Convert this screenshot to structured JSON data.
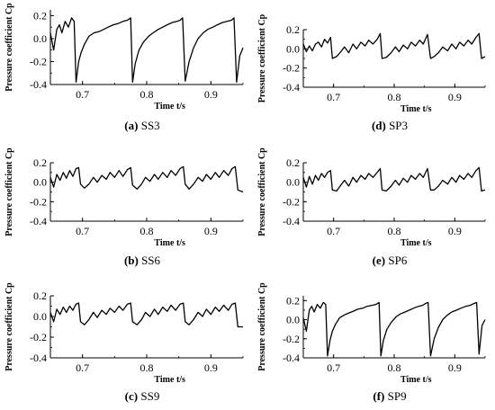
{
  "chart_data": [
    {
      "type": "line",
      "panel_label": "(a)",
      "caption": "SS3",
      "ylabel": "Pressure coefficient Cp",
      "xlabel": "Time t/s",
      "xlim": [
        0.65,
        0.95
      ],
      "ylim": [
        -0.4,
        0.25
      ],
      "xticks": [
        "0.7",
        "0.8",
        "0.9"
      ],
      "yticks": [
        "-0.4",
        "-0.2",
        "0.0",
        "0.2"
      ],
      "series": [
        {
          "x": [
            0.65,
            0.655,
            0.66,
            0.664,
            0.668,
            0.673,
            0.678,
            0.683,
            0.687,
            0.69,
            0.694,
            0.698,
            0.703,
            0.71,
            0.718,
            0.725,
            0.733,
            0.74,
            0.748,
            0.755,
            0.763,
            0.77,
            0.775,
            0.778,
            0.782,
            0.788,
            0.795,
            0.803,
            0.81,
            0.818,
            0.825,
            0.832,
            0.84,
            0.847,
            0.852,
            0.856,
            0.86,
            0.866,
            0.873,
            0.88,
            0.888,
            0.895,
            0.903,
            0.91,
            0.918,
            0.925,
            0.932,
            0.936,
            0.94,
            0.945,
            0.95
          ],
          "y": [
            0.05,
            -0.1,
            0.08,
            0.12,
            0.05,
            0.15,
            0.1,
            0.18,
            0.15,
            -0.38,
            -0.2,
            -0.12,
            -0.05,
            0.02,
            0.05,
            0.06,
            0.08,
            0.1,
            0.12,
            0.13,
            0.15,
            0.16,
            0.18,
            -0.38,
            -0.22,
            -0.1,
            -0.03,
            0.02,
            0.05,
            0.08,
            0.1,
            0.12,
            0.14,
            0.15,
            0.16,
            0.18,
            -0.37,
            -0.2,
            -0.08,
            0.0,
            0.05,
            0.08,
            0.1,
            0.12,
            0.14,
            0.15,
            0.16,
            0.18,
            -0.38,
            -0.15,
            -0.08
          ]
        }
      ]
    },
    {
      "type": "line",
      "panel_label": "(d)",
      "caption": "SP3",
      "ylabel": "Pressure coefficient Cp",
      "xlabel": "Time t/s",
      "xlim": [
        0.65,
        0.95
      ],
      "ylim": [
        -0.4,
        0.2
      ],
      "xticks": [
        "0.7",
        "0.8",
        "0.9"
      ],
      "yticks": [
        "-0.4",
        "-0.2",
        "0.0",
        "0.2"
      ],
      "series": [
        {
          "x": [
            0.65,
            0.655,
            0.66,
            0.665,
            0.67,
            0.675,
            0.68,
            0.685,
            0.69,
            0.695,
            0.698,
            0.705,
            0.712,
            0.718,
            0.725,
            0.732,
            0.738,
            0.745,
            0.752,
            0.758,
            0.765,
            0.772,
            0.777,
            0.78,
            0.787,
            0.795,
            0.802,
            0.808,
            0.815,
            0.822,
            0.828,
            0.835,
            0.842,
            0.848,
            0.855,
            0.86,
            0.866,
            0.873,
            0.88,
            0.888,
            0.895,
            0.902,
            0.908,
            0.915,
            0.922,
            0.928,
            0.935,
            0.94,
            0.944,
            0.95
          ],
          "y": [
            0.05,
            -0.03,
            0.03,
            -0.02,
            0.05,
            0.07,
            0.02,
            0.1,
            0.06,
            0.12,
            -0.1,
            -0.08,
            -0.03,
            0.02,
            -0.04,
            0.05,
            0.0,
            0.07,
            0.03,
            0.09,
            0.05,
            0.1,
            0.16,
            -0.1,
            -0.09,
            -0.04,
            0.02,
            -0.03,
            0.04,
            0.0,
            0.07,
            0.03,
            0.09,
            0.05,
            0.15,
            -0.1,
            -0.08,
            -0.04,
            0.02,
            -0.02,
            0.05,
            0.0,
            0.07,
            0.03,
            0.09,
            0.05,
            0.12,
            0.16,
            -0.1,
            -0.08
          ]
        }
      ]
    },
    {
      "type": "line",
      "panel_label": "(b)",
      "caption": "SS6",
      "ylabel": "Pressure coefficient Cp",
      "xlabel": "Time t/s",
      "xlim": [
        0.65,
        0.95
      ],
      "ylim": [
        -0.4,
        0.2
      ],
      "xticks": [
        "0.7",
        "0.8",
        "0.9"
      ],
      "yticks": [
        "-0.4",
        "-0.2",
        "0.0",
        "0.2"
      ],
      "series": [
        {
          "x": [
            0.65,
            0.655,
            0.66,
            0.665,
            0.67,
            0.675,
            0.68,
            0.685,
            0.69,
            0.694,
            0.697,
            0.703,
            0.71,
            0.717,
            0.723,
            0.73,
            0.737,
            0.743,
            0.75,
            0.757,
            0.763,
            0.77,
            0.775,
            0.778,
            0.785,
            0.792,
            0.798,
            0.805,
            0.812,
            0.818,
            0.825,
            0.832,
            0.838,
            0.845,
            0.852,
            0.857,
            0.86,
            0.866,
            0.873,
            0.88,
            0.887,
            0.893,
            0.9,
            0.907,
            0.913,
            0.92,
            0.927,
            0.933,
            0.938,
            0.942,
            0.95
          ],
          "y": [
            0.05,
            -0.05,
            0.08,
            0.02,
            0.1,
            0.04,
            0.12,
            0.06,
            0.14,
            0.15,
            -0.02,
            -0.06,
            -0.02,
            0.05,
            0.0,
            0.07,
            0.03,
            0.1,
            0.05,
            0.12,
            0.06,
            0.13,
            0.15,
            -0.03,
            -0.07,
            -0.02,
            0.05,
            0.01,
            0.08,
            0.03,
            0.1,
            0.05,
            0.12,
            0.07,
            0.14,
            0.16,
            -0.02,
            -0.07,
            -0.02,
            0.05,
            0.01,
            0.08,
            0.03,
            0.1,
            0.05,
            0.12,
            0.07,
            0.14,
            0.16,
            -0.08,
            -0.1
          ]
        }
      ]
    },
    {
      "type": "line",
      "panel_label": "(e)",
      "caption": "SP6",
      "ylabel": "Pressure coefficient Cp",
      "xlabel": "Time t/s",
      "xlim": [
        0.65,
        0.95
      ],
      "ylim": [
        -0.4,
        0.2
      ],
      "xticks": [
        "0.7",
        "0.8",
        "0.9"
      ],
      "yticks": [
        "-0.4",
        "-0.2",
        "0.0",
        "0.2"
      ],
      "series": [
        {
          "x": [
            0.65,
            0.655,
            0.66,
            0.665,
            0.67,
            0.675,
            0.68,
            0.685,
            0.69,
            0.695,
            0.698,
            0.705,
            0.712,
            0.718,
            0.725,
            0.732,
            0.738,
            0.745,
            0.752,
            0.758,
            0.765,
            0.772,
            0.777,
            0.78,
            0.787,
            0.795,
            0.802,
            0.808,
            0.815,
            0.822,
            0.828,
            0.835,
            0.842,
            0.848,
            0.855,
            0.86,
            0.866,
            0.873,
            0.88,
            0.888,
            0.895,
            0.902,
            0.908,
            0.915,
            0.922,
            0.928,
            0.935,
            0.94,
            0.944,
            0.95
          ],
          "y": [
            0.05,
            -0.05,
            0.06,
            -0.02,
            0.07,
            0.02,
            0.09,
            0.05,
            0.1,
            0.12,
            -0.08,
            -0.09,
            -0.03,
            0.02,
            -0.04,
            0.05,
            0.0,
            0.07,
            0.03,
            0.09,
            0.05,
            0.1,
            0.14,
            -0.08,
            -0.09,
            -0.04,
            0.02,
            -0.03,
            0.04,
            0.0,
            0.07,
            0.03,
            0.09,
            0.05,
            0.14,
            -0.08,
            -0.08,
            -0.04,
            0.02,
            -0.02,
            0.05,
            0.0,
            0.07,
            0.03,
            0.09,
            0.05,
            0.12,
            0.15,
            -0.09,
            -0.08
          ]
        }
      ]
    },
    {
      "type": "line",
      "panel_label": "(c)",
      "caption": "SS9",
      "ylabel": "Pressure coefficient Cp",
      "xlabel": "Time t/s",
      "xlim": [
        0.65,
        0.95
      ],
      "ylim": [
        -0.4,
        0.2
      ],
      "xticks": [
        "0.7",
        "0.8",
        "0.9"
      ],
      "yticks": [
        "-0.4",
        "-0.2",
        "0.0",
        "0.2"
      ],
      "series": [
        {
          "x": [
            0.65,
            0.655,
            0.66,
            0.665,
            0.67,
            0.675,
            0.68,
            0.685,
            0.69,
            0.694,
            0.697,
            0.703,
            0.71,
            0.717,
            0.723,
            0.73,
            0.737,
            0.743,
            0.75,
            0.757,
            0.763,
            0.77,
            0.775,
            0.778,
            0.785,
            0.792,
            0.798,
            0.805,
            0.812,
            0.818,
            0.825,
            0.832,
            0.838,
            0.845,
            0.852,
            0.857,
            0.86,
            0.866,
            0.873,
            0.88,
            0.887,
            0.893,
            0.9,
            0.907,
            0.913,
            0.92,
            0.927,
            0.933,
            0.938,
            0.942,
            0.95
          ],
          "y": [
            0.04,
            -0.05,
            0.07,
            0.02,
            0.09,
            0.04,
            0.1,
            0.06,
            0.12,
            0.13,
            -0.05,
            -0.08,
            -0.03,
            0.04,
            -0.01,
            0.06,
            0.02,
            0.08,
            0.04,
            0.1,
            0.06,
            0.12,
            0.13,
            -0.05,
            -0.08,
            -0.03,
            0.04,
            0.0,
            0.07,
            0.02,
            0.09,
            0.05,
            0.11,
            0.06,
            0.12,
            0.13,
            -0.05,
            -0.08,
            -0.03,
            0.04,
            0.0,
            0.07,
            0.02,
            0.09,
            0.05,
            0.11,
            0.06,
            0.12,
            0.13,
            -0.1,
            -0.1
          ]
        }
      ]
    },
    {
      "type": "line",
      "panel_label": "(f)",
      "caption": "SP9",
      "ylabel": "Pressure coefficient Cp",
      "xlabel": "Time t/s",
      "xlim": [
        0.65,
        0.95
      ],
      "ylim": [
        -0.4,
        0.25
      ],
      "xticks": [
        "0.7",
        "0.8",
        "0.9"
      ],
      "yticks": [
        "-0.4",
        "-0.2",
        "0.0",
        "0.2"
      ],
      "series": [
        {
          "x": [
            0.65,
            0.655,
            0.66,
            0.664,
            0.668,
            0.673,
            0.678,
            0.683,
            0.687,
            0.69,
            0.694,
            0.698,
            0.703,
            0.71,
            0.718,
            0.725,
            0.733,
            0.74,
            0.748,
            0.755,
            0.763,
            0.77,
            0.775,
            0.778,
            0.782,
            0.788,
            0.795,
            0.803,
            0.81,
            0.818,
            0.825,
            0.832,
            0.84,
            0.847,
            0.852,
            0.856,
            0.86,
            0.866,
            0.873,
            0.88,
            0.888,
            0.895,
            0.903,
            0.91,
            0.918,
            0.925,
            0.932,
            0.936,
            0.94,
            0.945,
            0.95
          ],
          "y": [
            0.02,
            -0.12,
            0.1,
            0.14,
            0.08,
            0.16,
            0.12,
            0.18,
            0.16,
            -0.38,
            -0.22,
            -0.12,
            -0.05,
            0.02,
            0.05,
            0.07,
            0.09,
            0.11,
            0.12,
            0.14,
            0.15,
            0.16,
            0.18,
            -0.38,
            -0.22,
            -0.1,
            -0.03,
            0.03,
            0.06,
            0.08,
            0.1,
            0.12,
            0.14,
            0.15,
            0.17,
            0.18,
            -0.38,
            -0.2,
            -0.08,
            0.0,
            0.05,
            0.08,
            0.1,
            0.12,
            0.14,
            0.15,
            0.17,
            0.18,
            -0.36,
            -0.06,
            0.0
          ]
        }
      ]
    }
  ]
}
